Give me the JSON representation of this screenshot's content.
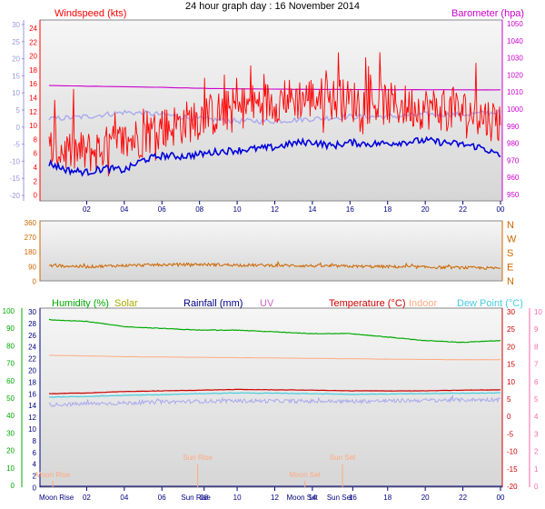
{
  "title": "24 hour graph day : 16 November 2014",
  "colors": {
    "windspeed": "#ff0000",
    "barometer": "#cc00cc",
    "gust_lavender": "#aaaaee",
    "wind_avg_blue": "#0000dd",
    "direction": "#cc6600",
    "humidity": "#00aa00",
    "solar": "#aaaa00",
    "rainfall": "#000080",
    "uv": "#cc66cc",
    "temperature": "#cc0000",
    "indoor": "#ffaa80",
    "dewpoint": "#44ccdd",
    "axis_left_top": "#9999dd",
    "axis_right_bottom": "#ff66aa",
    "plot_bg_top": "#f4f4f4",
    "plot_bg_bottom": "#dadada"
  },
  "chart_data": [
    {
      "type": "line",
      "panel": "wind-barometer",
      "legend_left": "Windspeed (kts)",
      "legend_right": "Barometer (hpa)",
      "x_ticks": [
        "02",
        "04",
        "06",
        "08",
        "10",
        "12",
        "14",
        "16",
        "18",
        "20",
        "22",
        "00"
      ],
      "y_axis_outer_left": [
        "30",
        "25",
        "20",
        "15",
        "10",
        "5",
        "0",
        "-5",
        "-10",
        "-15",
        "-20"
      ],
      "y_axis_inner_left": [
        "24",
        "22",
        "20",
        "18",
        "16",
        "14",
        "12",
        "10",
        "8",
        "6",
        "4",
        "2",
        "0"
      ],
      "y_axis_right": [
        "1050",
        "1040",
        "1030",
        "1020",
        "1010",
        "1000",
        "990",
        "980",
        "970",
        "960",
        "950"
      ],
      "ylim_wind": [
        0,
        25
      ],
      "ylim_pressure": [
        950,
        1052
      ],
      "series": [
        {
          "key": "gust",
          "color_key": "windspeed",
          "min": 2.0,
          "max": 21.0,
          "x": [
            0,
            2,
            4,
            6,
            8,
            10,
            12,
            14,
            16,
            18,
            20,
            22,
            24
          ],
          "y": [
            6.5,
            6.0,
            7.5,
            9.5,
            11.0,
            12.5,
            13.5,
            14.0,
            13.5,
            13.0,
            12.5,
            12.0,
            10.5
          ]
        },
        {
          "key": "average",
          "color_key": "wind_avg_blue",
          "x": [
            0,
            1,
            2,
            3,
            4,
            5,
            6,
            7,
            8,
            9,
            10,
            11,
            12,
            13,
            14,
            15,
            16,
            17,
            18,
            19,
            20,
            21,
            22,
            23,
            24
          ],
          "y": [
            4.5,
            3.5,
            3.2,
            3.8,
            3.5,
            5.0,
            5.6,
            5.5,
            5.8,
            6.2,
            6.4,
            6.6,
            6.8,
            7.4,
            7.6,
            7.0,
            7.5,
            7.3,
            7.4,
            7.6,
            7.8,
            7.5,
            7.2,
            6.8,
            5.5
          ]
        },
        {
          "key": "pressure",
          "color_key": "barometer",
          "x": [
            0,
            2,
            4,
            6,
            8,
            10,
            12,
            14,
            16,
            18,
            20,
            22,
            24
          ],
          "y": [
            1015.0,
            1014.7,
            1014.4,
            1014.0,
            1013.5,
            1013.2,
            1013.0,
            1012.9,
            1012.8,
            1012.7,
            1012.7,
            1012.6,
            1012.6
          ]
        },
        {
          "key": "lavender",
          "color_key": "gust_lavender",
          "x": [
            0,
            2,
            4,
            6,
            8,
            10,
            12,
            14,
            16,
            18,
            20,
            22,
            24
          ],
          "y": [
            1.5,
            2.0,
            3.0,
            2.5,
            1.5,
            1.0,
            1.0,
            1.5,
            2.0,
            2.0,
            2.5,
            2.5,
            3.0
          ]
        }
      ]
    },
    {
      "type": "line",
      "panel": "wind-direction",
      "y_axis_left": [
        "360",
        "270",
        "180",
        "90",
        "0"
      ],
      "compass_right": [
        "N",
        "W",
        "S",
        "E",
        "N"
      ],
      "ylim": [
        0,
        360
      ],
      "series": [
        {
          "key": "direction",
          "color_key": "direction",
          "x": [
            0,
            2,
            4,
            6,
            8,
            10,
            12,
            14,
            16,
            18,
            20,
            22,
            24
          ],
          "y": [
            95,
            88,
            95,
            100,
            102,
            98,
            96,
            93,
            90,
            88,
            85,
            82,
            78
          ]
        }
      ]
    },
    {
      "type": "line",
      "panel": "temperature-humidity",
      "legend": [
        "Humidity (%)",
        "Solar",
        "Rainfall (mm)",
        "UV",
        "Temperature (°C)",
        "Indoor",
        "Dew Point (°C)"
      ],
      "y_axis_humidity": [
        "100",
        "90",
        "80",
        "70",
        "60",
        "50",
        "40",
        "30",
        "20",
        "10",
        "0"
      ],
      "y_axis_rain": [
        "30",
        "28",
        "26",
        "24",
        "22",
        "20",
        "18",
        "16",
        "14",
        "12",
        "10",
        "8",
        "6",
        "4",
        "2",
        "0"
      ],
      "y_axis_temp": [
        "30",
        "25",
        "20",
        "15",
        "10",
        "5",
        "0",
        "-5",
        "-10",
        "-15",
        "-20"
      ],
      "y_axis_uv": [
        "10",
        "9",
        "8",
        "7",
        "6",
        "5",
        "4",
        "3",
        "2",
        "1",
        "0"
      ],
      "x_ticks": [
        "Moon Rise",
        "02",
        "04",
        "06",
        "Sun Rise",
        "08",
        "10",
        "12",
        "Moon Set",
        "14",
        "Sun Set",
        "16",
        "18",
        "20",
        "22",
        "00"
      ],
      "annotations": [
        "Moon Rise",
        "Sun Rise",
        "Sun Set",
        "Moon Set"
      ],
      "series": [
        {
          "key": "humidity",
          "color_key": "humidity",
          "x": [
            0,
            2,
            4,
            6,
            8,
            10,
            12,
            14,
            16,
            18,
            20,
            22,
            24
          ],
          "y": [
            96,
            95,
            92,
            91,
            90,
            90,
            89,
            88,
            88,
            86,
            84,
            83,
            84
          ]
        },
        {
          "key": "indoor",
          "color_key": "indoor",
          "x": [
            0,
            4,
            8,
            12,
            16,
            20,
            24
          ],
          "y": [
            17.8,
            17.4,
            17.2,
            17.0,
            16.8,
            16.6,
            16.5
          ]
        },
        {
          "key": "temperature",
          "color_key": "temperature",
          "x": [
            0,
            2,
            4,
            6,
            8,
            10,
            12,
            14,
            16,
            18,
            20,
            22,
            24
          ],
          "y": [
            6.8,
            7.0,
            7.4,
            7.6,
            7.8,
            8.0,
            7.9,
            7.8,
            7.6,
            7.6,
            7.6,
            7.8,
            7.9
          ]
        },
        {
          "key": "dewpoint",
          "color_key": "dewpoint",
          "x": [
            0,
            2,
            4,
            6,
            8,
            10,
            12,
            14,
            16,
            18,
            20,
            22,
            24
          ],
          "y": [
            5.8,
            6.0,
            6.3,
            6.5,
            6.8,
            7.0,
            6.9,
            6.8,
            6.6,
            6.7,
            6.8,
            6.9,
            7.0
          ]
        },
        {
          "key": "uv_noise",
          "color_key": "gust_lavender",
          "x": [
            0,
            2,
            4,
            6,
            8,
            10,
            12,
            14,
            16,
            18,
            20,
            22,
            24
          ],
          "y": [
            3.6,
            3.9,
            4.1,
            4.4,
            4.6,
            4.7,
            4.7,
            4.6,
            4.6,
            4.7,
            4.9,
            5.0,
            5.1
          ]
        }
      ]
    }
  ]
}
